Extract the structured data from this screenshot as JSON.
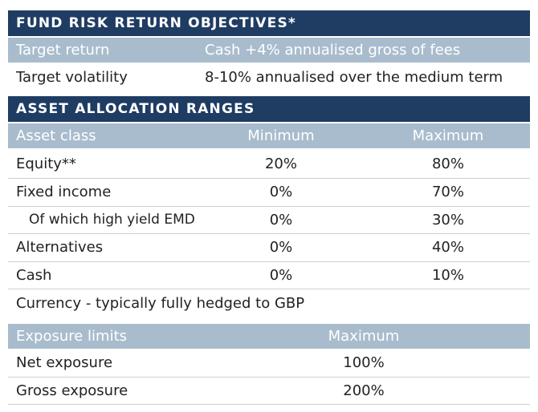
{
  "section1": {
    "title": "FUND RISK RETURN OBJECTIVES*",
    "rows": [
      {
        "label": "Target return",
        "value": "Cash +4% annualised gross of fees"
      },
      {
        "label": "Target volatility",
        "value": "8-10% annualised over the medium term"
      }
    ]
  },
  "section2": {
    "title": "ASSET ALLOCATION RANGES",
    "headers": {
      "asset_class": "Asset class",
      "minimum": "Minimum",
      "maximum": "Maximum"
    },
    "rows": [
      {
        "label": "Equity**",
        "min": "20%",
        "max": "80%"
      },
      {
        "label": "Fixed income",
        "min": "0%",
        "max": "70%"
      },
      {
        "label": "Of which high yield EMD",
        "min": "0%",
        "max": "30%"
      },
      {
        "label": "Alternatives",
        "min": "0%",
        "max": "40%"
      },
      {
        "label": "Cash",
        "min": "0%",
        "max": "10%"
      }
    ],
    "currency_note": "Currency - typically fully hedged to GBP"
  },
  "section3": {
    "headers": {
      "label": "Exposure limits",
      "maximum": "Maximum"
    },
    "rows": [
      {
        "label": "Net exposure",
        "max": "100%"
      },
      {
        "label": "Gross exposure",
        "max": "200%"
      }
    ]
  },
  "colors": {
    "band": "#1f3c63",
    "subheader": "#a9bccd",
    "separator": "#cfcfcf",
    "text": "#222222"
  }
}
